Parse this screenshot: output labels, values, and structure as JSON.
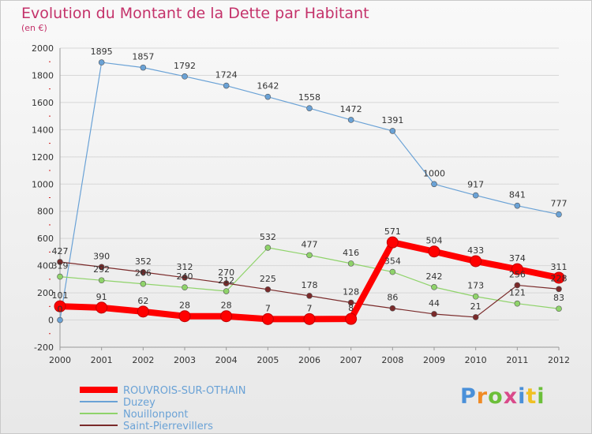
{
  "title": "Evolution du Montant de la Dette par Habitant",
  "subtitle": "(en €)",
  "logo": {
    "text": "Proxiti",
    "colors": [
      "#4a90d9",
      "#f08a24",
      "#6cbf3a",
      "#d94a8a",
      "#4a90d9",
      "#f0c024",
      "#6cbf3a"
    ]
  },
  "chart_data": {
    "type": "line",
    "title": "Evolution du Montant de la Dette par Habitant",
    "ylabel": "(en €)",
    "xlabel": "",
    "ylim": [
      -200,
      2000
    ],
    "yticks": [
      -200,
      0,
      200,
      400,
      600,
      800,
      1000,
      1200,
      1400,
      1600,
      1800,
      2000
    ],
    "categories": [
      "2000",
      "2001",
      "2002",
      "2003",
      "2004",
      "2005",
      "2006",
      "2007",
      "2008",
      "2009",
      "2010",
      "2011",
      "2012"
    ],
    "legend_position": "bottom-left",
    "series": [
      {
        "name": "ROUVROIS-SUR-OTHAIN",
        "color": "#ff0000",
        "bold": true,
        "values": [
          101,
          91,
          62,
          28,
          28,
          7,
          7,
          8,
          571,
          504,
          433,
          374,
          311
        ],
        "labels": [
          "101",
          "91",
          "62",
          "28",
          "28",
          "7",
          "7",
          "8",
          "571",
          "504",
          "433",
          "374",
          "311"
        ]
      },
      {
        "name": "Duzey",
        "color": "#6aa2d6",
        "bold": false,
        "values": [
          0,
          1895,
          1857,
          1792,
          1724,
          1642,
          1558,
          1472,
          1391,
          1000,
          917,
          841,
          777
        ],
        "labels": [
          "0",
          "1895",
          "1857",
          "1792",
          "1724",
          "1642",
          "1558",
          "1472",
          "1391",
          "1000",
          "917",
          "841",
          "777"
        ]
      },
      {
        "name": "Nouillonpont",
        "color": "#8fd36a",
        "bold": false,
        "values": [
          319,
          292,
          266,
          240,
          212,
          532,
          477,
          416,
          354,
          242,
          173,
          121,
          83
        ],
        "labels": [
          "319",
          "292",
          "266",
          "240",
          "212",
          "532",
          "477",
          "416",
          "354",
          "242",
          "173",
          "121",
          "83"
        ]
      },
      {
        "name": "Saint-Pierrevillers",
        "color": "#7a2a2a",
        "bold": false,
        "values": [
          427,
          390,
          352,
          312,
          270,
          225,
          178,
          128,
          86,
          44,
          21,
          256,
          228
        ],
        "labels": [
          "427",
          "390",
          "352",
          "312",
          "270",
          "225",
          "178",
          "128",
          "86",
          "44",
          "21",
          "256",
          "228"
        ]
      }
    ]
  }
}
